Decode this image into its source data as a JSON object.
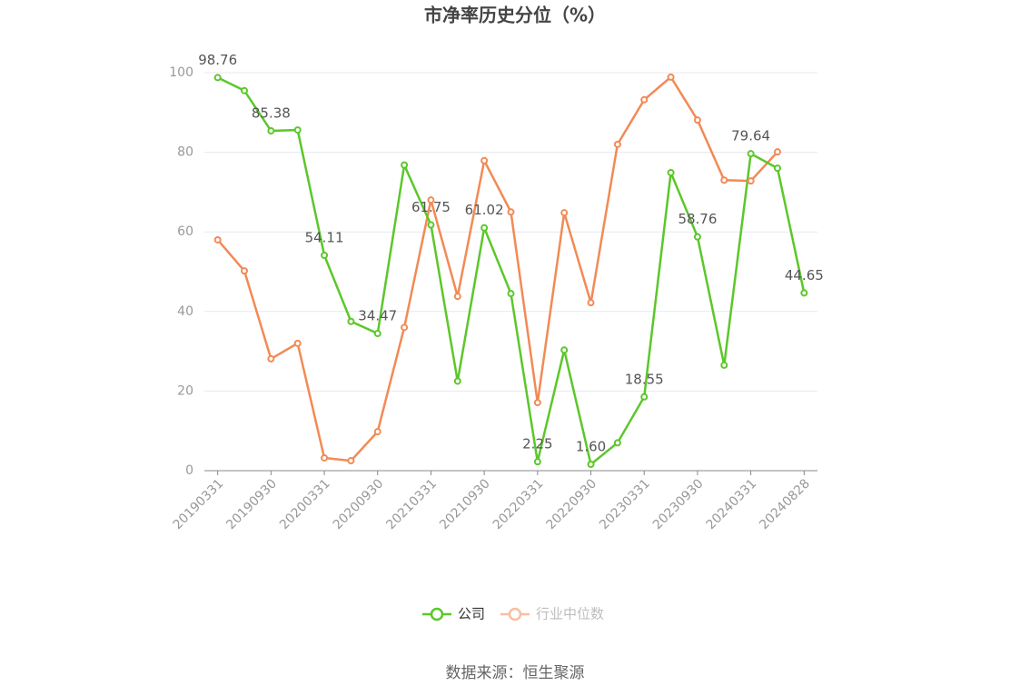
{
  "chart_data": {
    "type": "line",
    "title": "市净率历史分位（%）",
    "categories": [
      "20190331",
      null,
      "20190930",
      null,
      "20200331",
      null,
      "20200930",
      null,
      "20210331",
      null,
      "20210930",
      null,
      "20220331",
      null,
      "20220930",
      null,
      "20230331",
      null,
      "20230930",
      null,
      "20240331",
      null,
      "20240828"
    ],
    "series": [
      {
        "name": "公司",
        "color": "#5cc72a",
        "values": [
          98.76,
          95.5,
          85.38,
          85.6,
          54.11,
          37.5,
          34.47,
          76.8,
          61.75,
          22.5,
          61.02,
          44.5,
          2.25,
          30.3,
          1.6,
          7,
          18.55,
          74.9,
          58.76,
          26.5,
          79.64,
          76,
          44.65
        ],
        "value_labels": [
          "98.76",
          null,
          "85.38",
          null,
          "54.11",
          null,
          "34.47",
          null,
          "61.75",
          null,
          "61.02",
          null,
          "2.25",
          null,
          "1.60",
          null,
          "18.55",
          null,
          "58.76",
          null,
          "79.64",
          null,
          "44.65"
        ]
      },
      {
        "name": "行业中位数",
        "color": "#f28a55",
        "values": [
          58,
          50.2,
          28.1,
          32,
          3.2,
          2.5,
          9.8,
          36,
          68,
          43.8,
          77.9,
          65,
          17.1,
          64.8,
          42.2,
          82,
          93.2,
          98.9,
          88.1,
          73,
          72.8,
          80.1,
          null
        ]
      }
    ],
    "ylim": [
      0,
      100
    ],
    "yticks": [
      0,
      20,
      40,
      60,
      80,
      100
    ],
    "grid": true,
    "source": "数据来源：恒生聚源"
  }
}
